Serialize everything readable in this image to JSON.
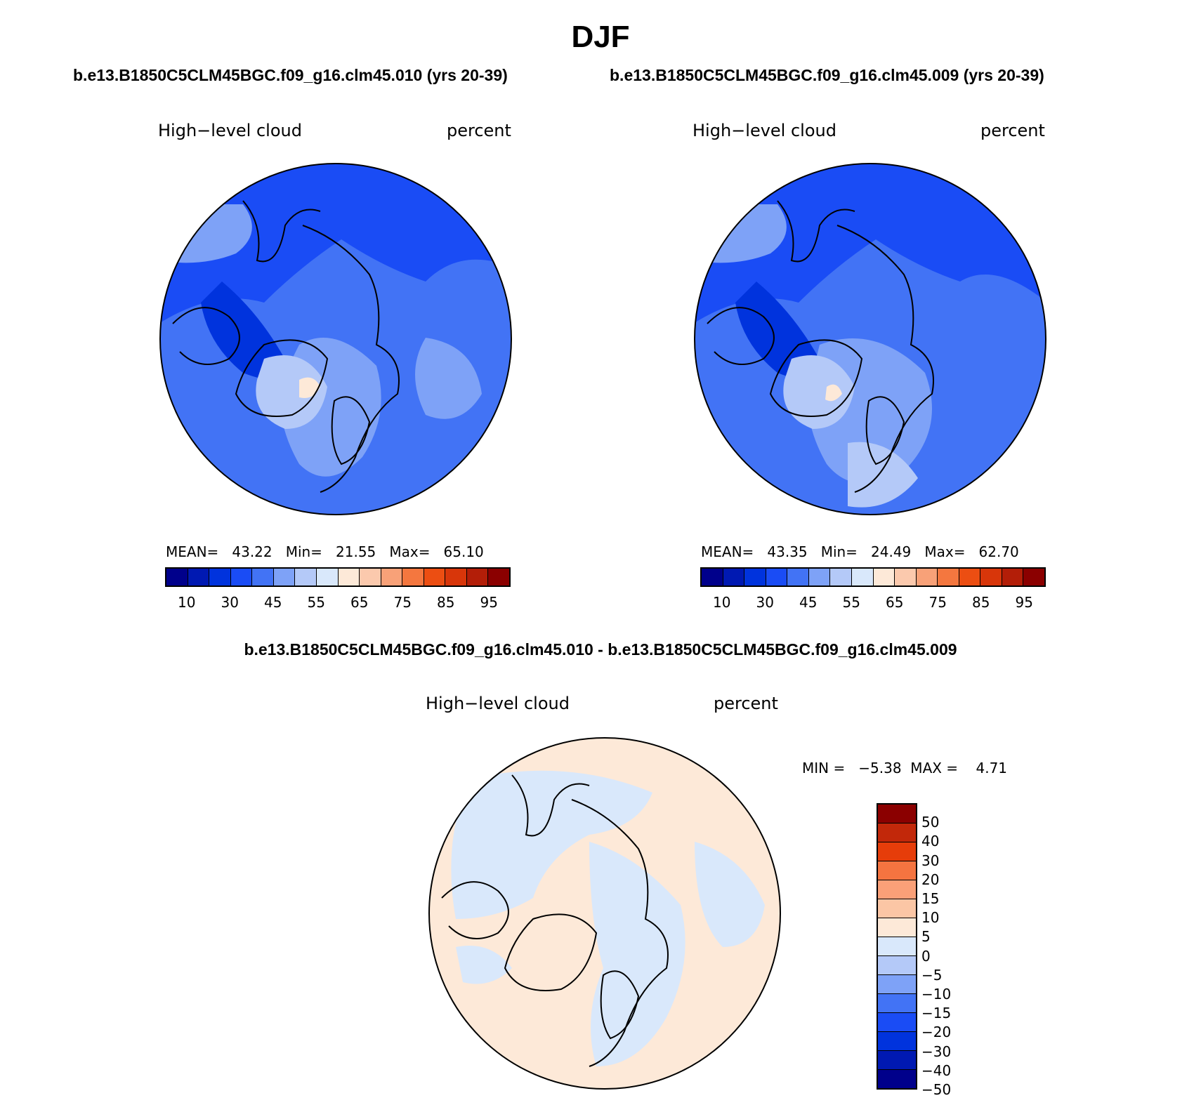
{
  "title": "DJF",
  "panels": [
    {
      "case_title": "b.e13.B1850C5CLM45BGC.f09_g16.clm45.010 (yrs 20-39)",
      "variable": "High−level cloud",
      "units": "percent",
      "stats": "MEAN=   43.22   Min=   21.55   Max=   65.10",
      "colorbar_ticks": [
        "10",
        "30",
        "45",
        "55",
        "65",
        "75",
        "85",
        "95"
      ]
    },
    {
      "case_title": "b.e13.B1850C5CLM45BGC.f09_g16.clm45.009 (yrs 20-39)",
      "variable": "High−level cloud",
      "units": "percent",
      "stats": "MEAN=   43.35   Min=   24.49   Max=   62.70",
      "colorbar_ticks": [
        "10",
        "30",
        "45",
        "55",
        "65",
        "75",
        "85",
        "95"
      ]
    }
  ],
  "difference": {
    "title": "b.e13.B1850C5CLM45BGC.f09_g16.clm45.010 - b.e13.B1850C5CLM45BGC.f09_g16.clm45.009",
    "variable": "High−level cloud",
    "units": "percent",
    "stats": "MIN =   −5.38  MAX =    4.71",
    "colorbar_ticks": [
      "50",
      "40",
      "30",
      "20",
      "15",
      "10",
      "5",
      "0",
      "−5",
      "−10",
      "−15",
      "−20",
      "−30",
      "−40",
      "−50"
    ]
  },
  "colors": {
    "abs_scale": [
      "#00008b",
      "#0019b2",
      "#0033dd",
      "#1a4cf5",
      "#4273f5",
      "#7ea2f7",
      "#b4c9f8",
      "#d9e8fb",
      "#fde9d8",
      "#fbc9ad",
      "#f8a178",
      "#f4773f",
      "#ec4e12",
      "#d8360a",
      "#b31e08",
      "#8b0000"
    ],
    "diff_scale": [
      "#8b0000",
      "#c2280a",
      "#e63d0a",
      "#f57440",
      "#faa078",
      "#fbc6a5",
      "#fde9d8",
      "#d9e8fb",
      "#b4c9f8",
      "#7ea2f7",
      "#4273f5",
      "#1a4cf5",
      "#0033dd",
      "#0019b2",
      "#00008b"
    ],
    "coastline": "#000000"
  }
}
